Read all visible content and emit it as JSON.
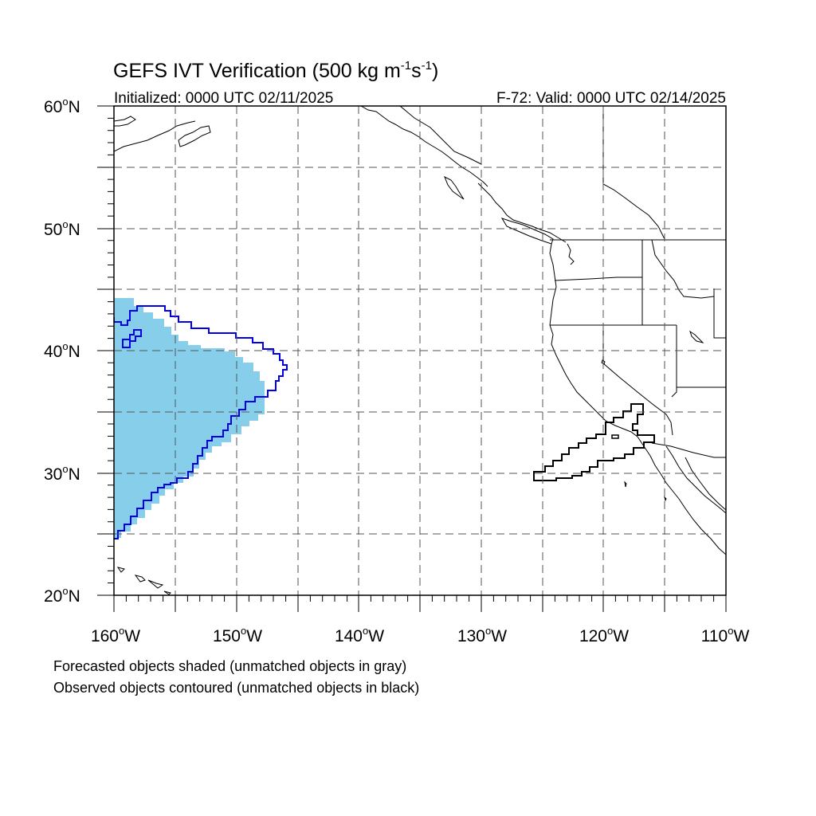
{
  "title": {
    "main": "GEFS IVT Verification (500 kg m",
    "sup1": "-1",
    "mid": "s",
    "sup2": "-1",
    "end": ")"
  },
  "subtitle": {
    "left": "Initialized: 0000 UTC 02/11/2025",
    "right": "F-72: Valid: 0000 UTC 02/14/2025"
  },
  "map": {
    "lon_range": [
      -160,
      -110
    ],
    "lat_range": [
      20,
      60
    ],
    "lat_labels": [
      "60",
      "50",
      "40",
      "30",
      "20"
    ],
    "lon_labels": [
      "160",
      "150",
      "140",
      "130",
      "120",
      "110"
    ],
    "lat_suffix": "N",
    "lon_suffix": "W",
    "degree_symbol": "o",
    "forecast_color": "#87CEEB",
    "matched_observed_color": "#0000ee",
    "unmatched_observed_color": "#000000",
    "coast_color": "#000000"
  },
  "legend": {
    "line1": "Forecasted objects shaded (unmatched objects in gray)",
    "line2": "Observed objects contoured (unmatched objects in black)"
  }
}
